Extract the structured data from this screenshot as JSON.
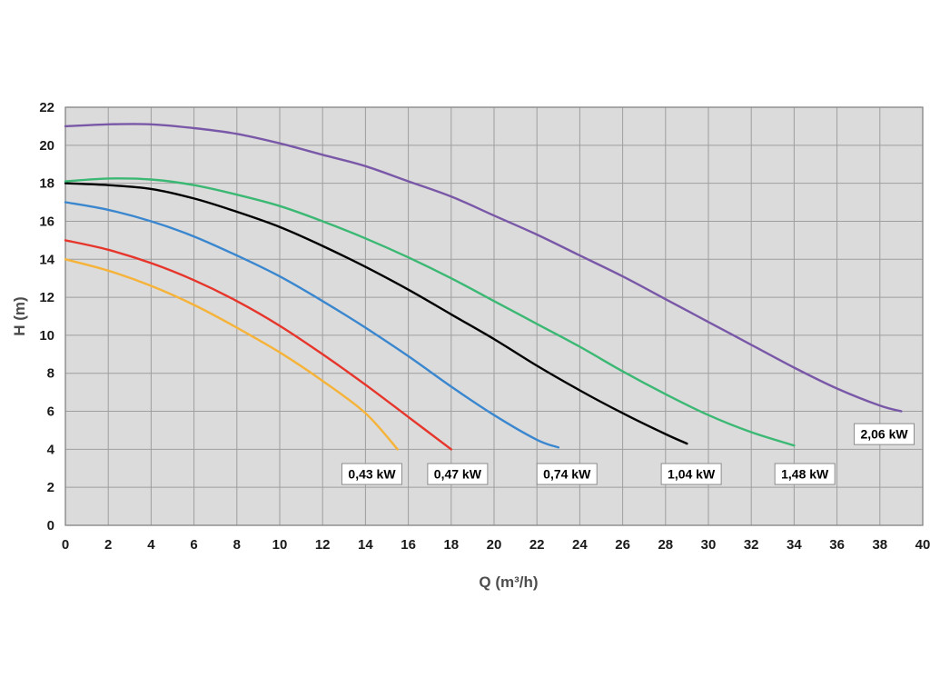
{
  "page": {
    "background": "#ffffff"
  },
  "chart_data": {
    "type": "line",
    "title": "",
    "xlabel": "Q (m³/h)",
    "ylabel": "H (m)",
    "xlim": [
      0,
      40
    ],
    "ylim": [
      0,
      22
    ],
    "x_tick_step": 2,
    "y_tick_step": 2,
    "grid": true,
    "legend_position": "on-curve-labels",
    "plot_bg": "#dbdbdb",
    "grid_color": "#9e9e9e",
    "plot_border_color": "#8a8a8a",
    "tick_text_color": "#1a1a1a",
    "axis_title_color": "#4d4d4d",
    "label_box": {
      "bg": "#ffffff",
      "border": "#8c8c8c",
      "text_color": "#000000"
    },
    "series": [
      {
        "name": "0,43 kW",
        "color": "#f6b33a",
        "points": [
          [
            0,
            14
          ],
          [
            2,
            13.4
          ],
          [
            4,
            12.6
          ],
          [
            6,
            11.6
          ],
          [
            8,
            10.4
          ],
          [
            10,
            9.1
          ],
          [
            12,
            7.6
          ],
          [
            14,
            5.9
          ],
          [
            15.5,
            4.0
          ]
        ],
        "label_pos": [
          14.3,
          2.7
        ]
      },
      {
        "name": "0,47 kW",
        "color": "#e6352b",
        "points": [
          [
            0,
            15
          ],
          [
            2,
            14.5
          ],
          [
            4,
            13.8
          ],
          [
            6,
            12.9
          ],
          [
            8,
            11.8
          ],
          [
            10,
            10.5
          ],
          [
            12,
            9.0
          ],
          [
            14,
            7.4
          ],
          [
            16,
            5.7
          ],
          [
            18,
            4.0
          ]
        ],
        "label_pos": [
          18.3,
          2.7
        ]
      },
      {
        "name": "0,74 kW",
        "color": "#3a87cf",
        "points": [
          [
            0,
            17
          ],
          [
            2,
            16.6
          ],
          [
            4,
            16.0
          ],
          [
            6,
            15.2
          ],
          [
            8,
            14.2
          ],
          [
            10,
            13.1
          ],
          [
            12,
            11.8
          ],
          [
            14,
            10.4
          ],
          [
            16,
            8.9
          ],
          [
            18,
            7.3
          ],
          [
            20,
            5.8
          ],
          [
            22,
            4.5
          ],
          [
            23,
            4.1
          ]
        ],
        "label_pos": [
          23.4,
          2.7
        ]
      },
      {
        "name": "1,04 kW",
        "color": "#000000",
        "points": [
          [
            0,
            18
          ],
          [
            2,
            17.9
          ],
          [
            4,
            17.7
          ],
          [
            6,
            17.2
          ],
          [
            8,
            16.5
          ],
          [
            10,
            15.7
          ],
          [
            12,
            14.7
          ],
          [
            14,
            13.6
          ],
          [
            16,
            12.4
          ],
          [
            18,
            11.1
          ],
          [
            20,
            9.8
          ],
          [
            22,
            8.4
          ],
          [
            24,
            7.1
          ],
          [
            26,
            5.9
          ],
          [
            28,
            4.8
          ],
          [
            29,
            4.3
          ]
        ],
        "label_pos": [
          29.2,
          2.7
        ]
      },
      {
        "name": "1,48 kW",
        "color": "#3bb873",
        "points": [
          [
            0,
            18.1
          ],
          [
            2,
            18.25
          ],
          [
            4,
            18.2
          ],
          [
            6,
            17.9
          ],
          [
            8,
            17.4
          ],
          [
            10,
            16.8
          ],
          [
            12,
            16.0
          ],
          [
            14,
            15.1
          ],
          [
            16,
            14.1
          ],
          [
            18,
            13.0
          ],
          [
            20,
            11.8
          ],
          [
            22,
            10.6
          ],
          [
            24,
            9.4
          ],
          [
            26,
            8.1
          ],
          [
            28,
            6.9
          ],
          [
            30,
            5.8
          ],
          [
            32,
            4.9
          ],
          [
            34,
            4.2
          ]
        ],
        "label_pos": [
          34.5,
          2.7
        ]
      },
      {
        "name": "2,06 kW",
        "color": "#7a58a8",
        "points": [
          [
            0,
            21
          ],
          [
            2,
            21.1
          ],
          [
            4,
            21.1
          ],
          [
            6,
            20.9
          ],
          [
            8,
            20.6
          ],
          [
            10,
            20.1
          ],
          [
            12,
            19.5
          ],
          [
            14,
            18.9
          ],
          [
            16,
            18.1
          ],
          [
            18,
            17.3
          ],
          [
            20,
            16.3
          ],
          [
            22,
            15.3
          ],
          [
            24,
            14.2
          ],
          [
            26,
            13.1
          ],
          [
            28,
            11.9
          ],
          [
            30,
            10.7
          ],
          [
            32,
            9.5
          ],
          [
            34,
            8.3
          ],
          [
            36,
            7.2
          ],
          [
            38,
            6.3
          ],
          [
            39,
            6.0
          ]
        ],
        "label_pos": [
          38.2,
          4.8
        ]
      }
    ]
  }
}
